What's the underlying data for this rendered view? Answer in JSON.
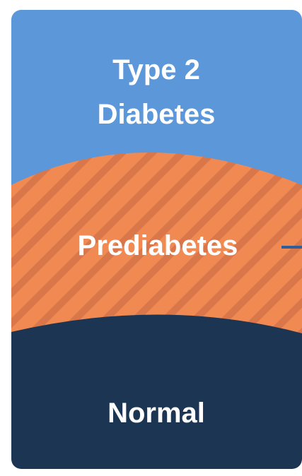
{
  "diagram": {
    "bands": [
      {
        "id": "type2",
        "label_lines": [
          "Type 2",
          "Diabetes"
        ],
        "color": "#5b97d9"
      },
      {
        "id": "prediabetes",
        "label_lines": [
          "Prediabetes"
        ],
        "color": "#f08a52",
        "stripe_color": "#d9774a"
      },
      {
        "id": "normal",
        "label_lines": [
          "Normal"
        ],
        "color": "#1b3552"
      }
    ],
    "connector_color": "#2e5f98"
  }
}
